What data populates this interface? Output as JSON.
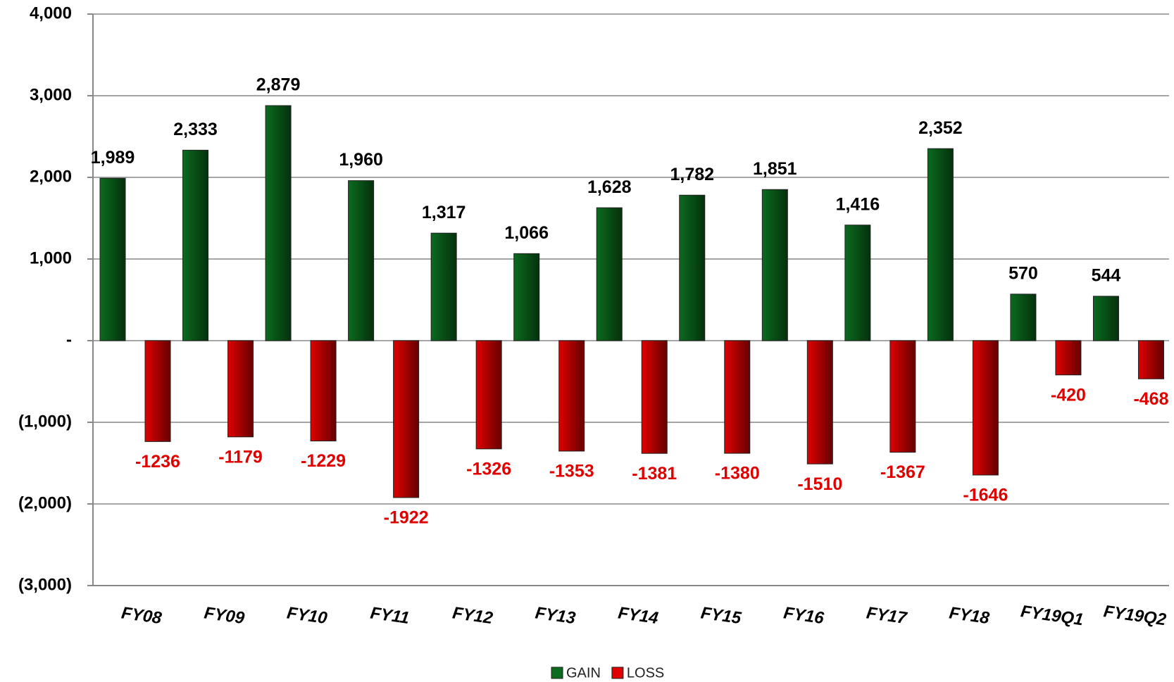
{
  "chart_data": {
    "type": "bar",
    "categories": [
      "FY08",
      "FY09",
      "FY10",
      "FY11",
      "FY12",
      "FY13",
      "FY14",
      "FY15",
      "FY16",
      "FY17",
      "FY18",
      "FY19Q1",
      "FY19Q2"
    ],
    "series": [
      {
        "name": "GAIN",
        "color": "#0b6b1e",
        "values": [
          1989,
          2333,
          2879,
          1960,
          1317,
          1066,
          1628,
          1782,
          1851,
          1416,
          2352,
          570,
          544
        ],
        "value_labels": [
          "1,989",
          "2,333",
          "2,879",
          "1,960",
          "1,317",
          "1,066",
          "1,628",
          "1,782",
          "1,851",
          "1,416",
          "2,352",
          "570",
          "544"
        ]
      },
      {
        "name": "LOSS",
        "color": "#e00000",
        "values": [
          -1236,
          -1179,
          -1229,
          -1922,
          -1326,
          -1353,
          -1381,
          -1380,
          -1510,
          -1367,
          -1646,
          -420,
          -468
        ]
      }
    ],
    "ylim": [
      -3000,
      4000
    ],
    "yticks": [
      {
        "value": 4000,
        "label": "4,000"
      },
      {
        "value": 3000,
        "label": "3,000"
      },
      {
        "value": 2000,
        "label": "2,000"
      },
      {
        "value": 1000,
        "label": "1,000"
      },
      {
        "value": 0,
        "label": "-"
      },
      {
        "value": -1000,
        "label": "(1,000)"
      },
      {
        "value": -2000,
        "label": "(2,000)"
      },
      {
        "value": -3000,
        "label": "(3,000)"
      }
    ],
    "grid": true,
    "legend": "bottom"
  }
}
